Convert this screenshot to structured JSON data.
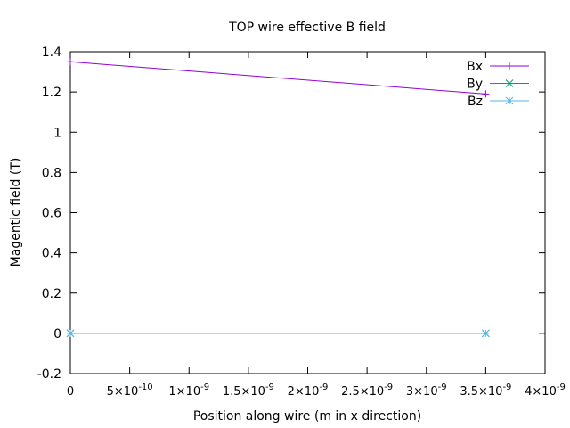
{
  "chart_data": {
    "type": "line",
    "title": "TOP wire effective B field",
    "xlabel": "Position along wire (m in x direction)",
    "ylabel": "Magentic field (T)",
    "xlim": [
      0,
      4e-09
    ],
    "ylim": [
      -0.2,
      1.4
    ],
    "x_ticks": [
      {
        "value": 0,
        "label": "0"
      },
      {
        "value": 5e-10,
        "label": "5x10-10"
      },
      {
        "value": 1e-09,
        "label": "1x10-9"
      },
      {
        "value": 1.5e-09,
        "label": "1.5x10-9"
      },
      {
        "value": 2e-09,
        "label": "2x10-9"
      },
      {
        "value": 2.5e-09,
        "label": "2.5x10-9"
      },
      {
        "value": 3e-09,
        "label": "3x10-9"
      },
      {
        "value": 3.5e-09,
        "label": "3.5x10-9"
      },
      {
        "value": 4e-09,
        "label": "4x10-9"
      }
    ],
    "y_ticks": [
      {
        "value": -0.2,
        "label": "-0.2"
      },
      {
        "value": 0,
        "label": "0"
      },
      {
        "value": 0.2,
        "label": "0.2"
      },
      {
        "value": 0.4,
        "label": "0.4"
      },
      {
        "value": 0.6,
        "label": "0.6"
      },
      {
        "value": 0.8,
        "label": "0.8"
      },
      {
        "value": 1,
        "label": "1"
      },
      {
        "value": 1.2,
        "label": "1.2"
      },
      {
        "value": 1.4,
        "label": "1.4"
      }
    ],
    "grid": false,
    "legend_position": "top-right",
    "series": [
      {
        "name": "Bx",
        "color": "#9400d3",
        "marker": "plus",
        "x": [
          0,
          3.5e-09
        ],
        "y": [
          1.35,
          1.19
        ]
      },
      {
        "name": "By",
        "color": "#009e73",
        "marker": "cross",
        "x": [
          0,
          3.5e-09
        ],
        "y": [
          0,
          0
        ]
      },
      {
        "name": "Bz",
        "color": "#56b4e9",
        "marker": "star",
        "x": [
          0,
          3.5e-09
        ],
        "y": [
          0,
          0
        ]
      }
    ]
  }
}
